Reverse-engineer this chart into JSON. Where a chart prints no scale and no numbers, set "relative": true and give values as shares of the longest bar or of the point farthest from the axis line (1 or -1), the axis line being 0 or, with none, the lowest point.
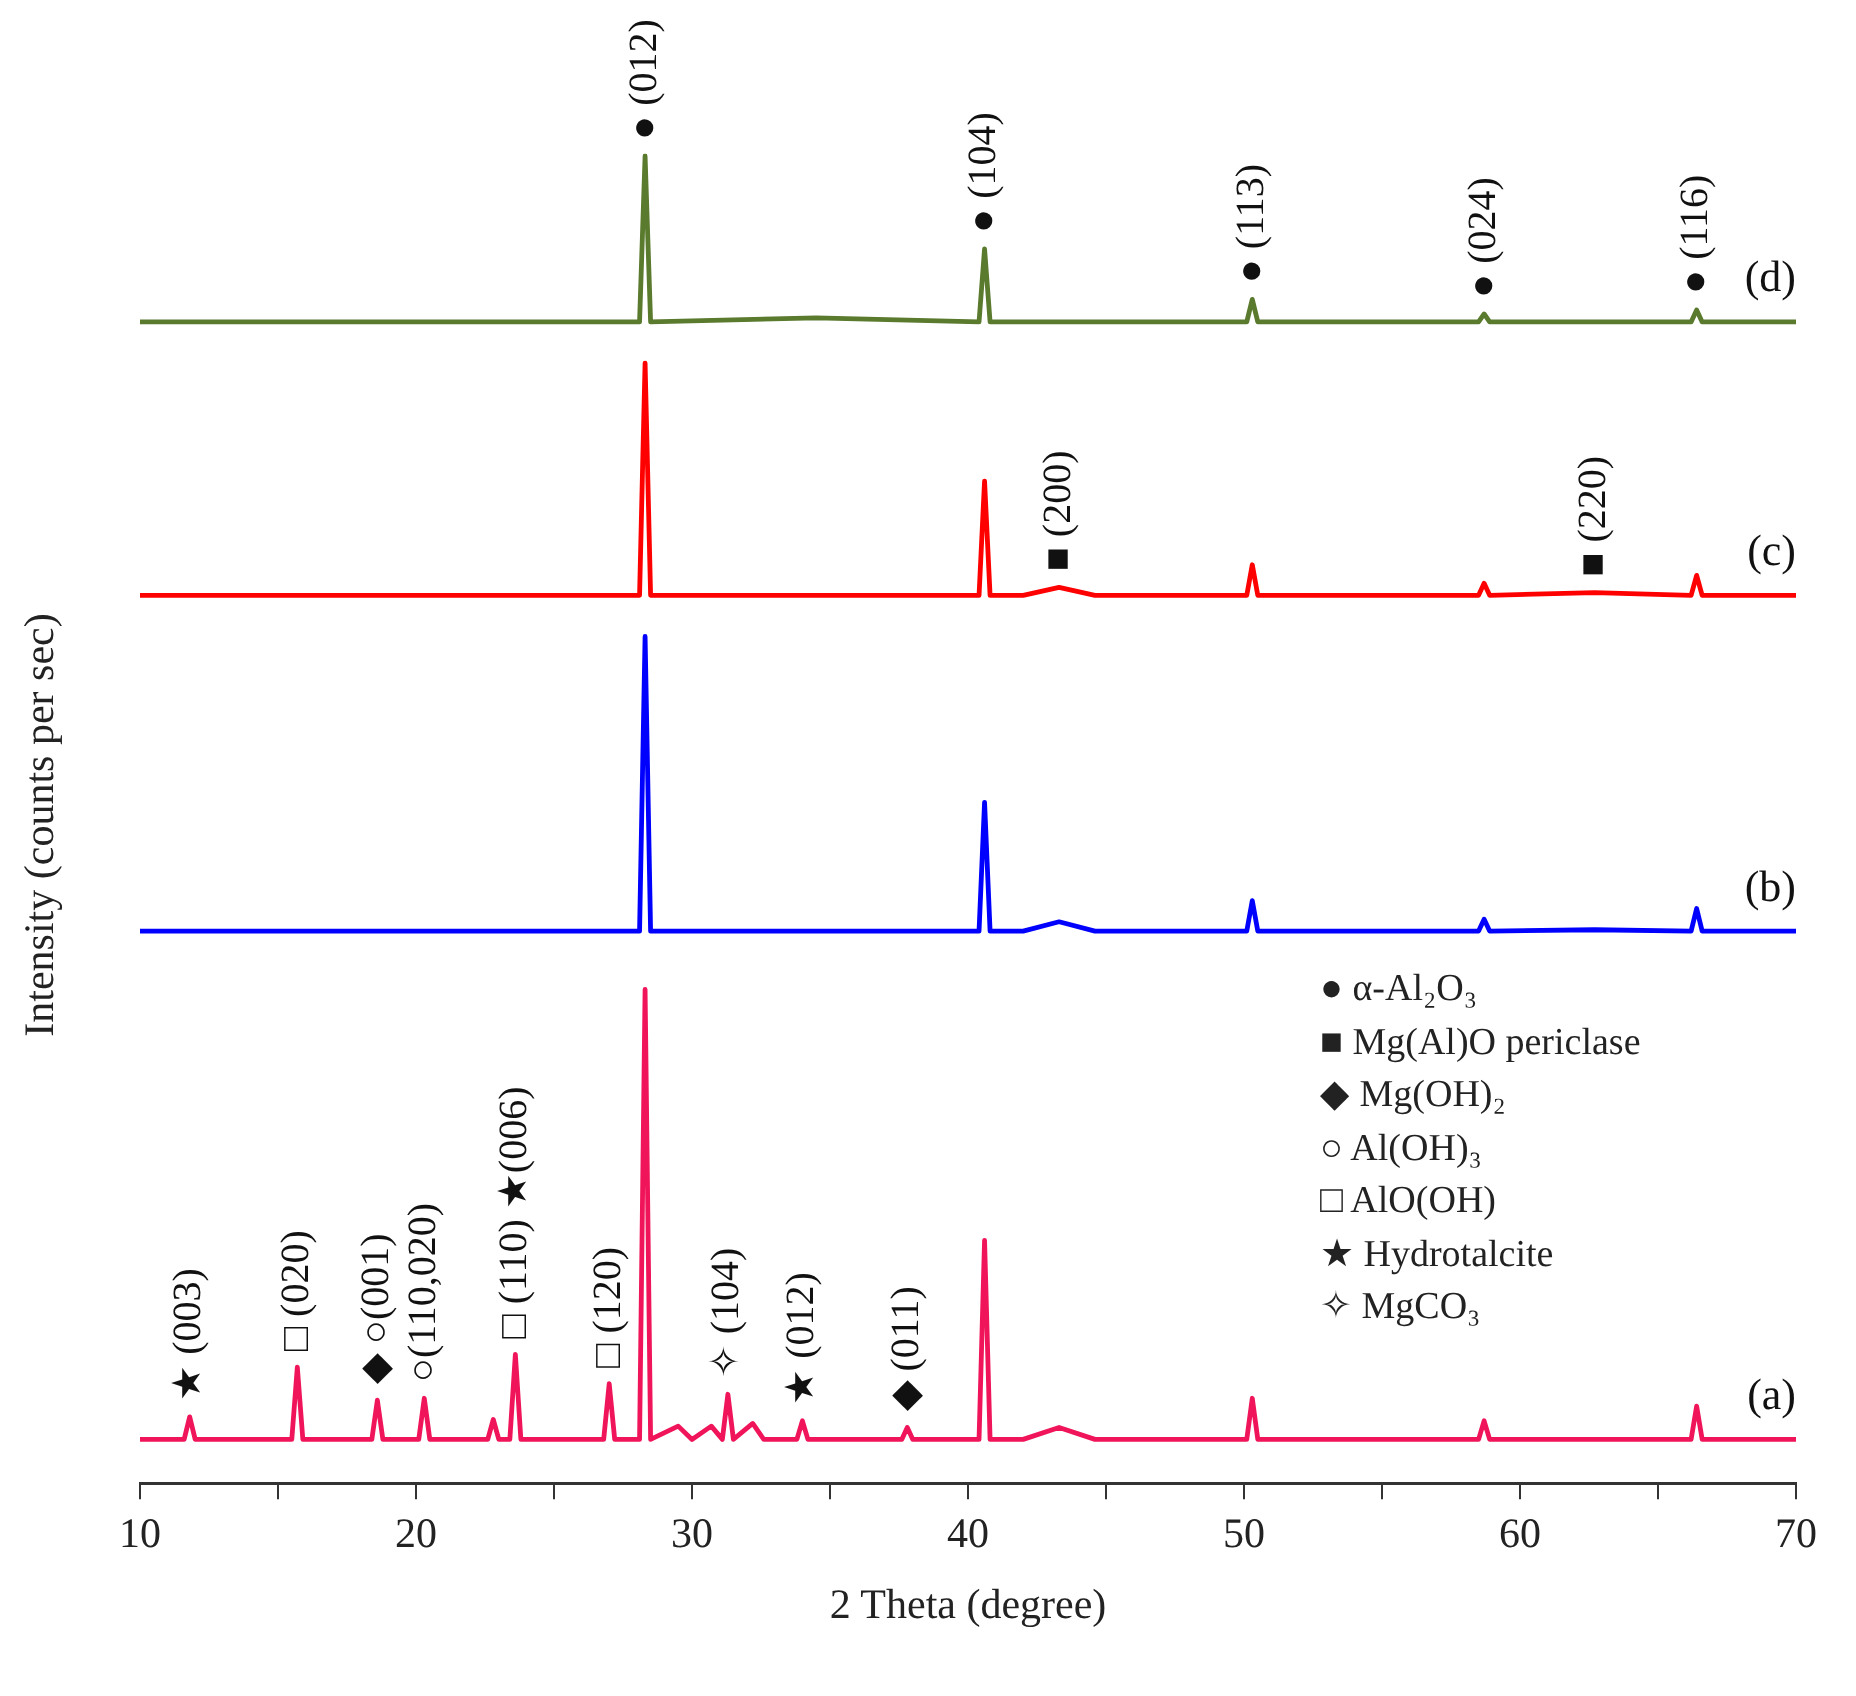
{
  "chart_data": {
    "type": "line",
    "relative": true,
    "xlabel": "2 Theta (degree)",
    "ylabel": "Intensity (counts per sec)",
    "xlim": [
      10,
      70
    ],
    "xticks": [
      10,
      {
        "value": 15,
        "label": null
      },
      20,
      {
        "value": 25,
        "label": null
      },
      30,
      {
        "value": 35,
        "label": null
      },
      40,
      {
        "value": 45,
        "label": null
      },
      50,
      {
        "value": 55,
        "label": null
      },
      60,
      {
        "value": 65,
        "label": null
      },
      70
    ],
    "tick_labels": "x",
    "marker": "none",
    "line_style": "solid",
    "series": [
      {
        "name": "(d)",
        "color": "#5a7a2e",
        "x": [
          10,
          28.1,
          28.3,
          28.5,
          34.5,
          40.4,
          40.6,
          40.8,
          50.1,
          50.3,
          50.5,
          58.5,
          58.7,
          58.9,
          66.2,
          66.4,
          66.6,
          70
        ],
        "values": [
          0.875,
          0.875,
          1.0,
          0.875,
          0.878,
          0.875,
          0.93,
          0.875,
          0.875,
          0.892,
          0.875,
          0.875,
          0.881,
          0.875,
          0.875,
          0.884,
          0.875,
          0.875
        ]
      },
      {
        "name": "(c)",
        "color": "#ff0000",
        "x": [
          10,
          28.1,
          28.3,
          28.5,
          40.4,
          40.6,
          40.8,
          42.0,
          43.3,
          44.6,
          50.1,
          50.3,
          50.5,
          58.5,
          58.7,
          58.9,
          62.7,
          66.2,
          66.4,
          66.6,
          70
        ],
        "values": [
          0.669,
          0.669,
          0.844,
          0.669,
          0.669,
          0.755,
          0.669,
          0.669,
          0.675,
          0.669,
          0.669,
          0.692,
          0.669,
          0.669,
          0.678,
          0.669,
          0.671,
          0.669,
          0.684,
          0.669,
          0.669
        ]
      },
      {
        "name": "(b)",
        "color": "#0000ff",
        "x": [
          10,
          28.1,
          28.3,
          28.5,
          40.4,
          40.6,
          40.8,
          42.0,
          43.3,
          44.6,
          50.1,
          50.3,
          50.5,
          58.5,
          58.7,
          58.9,
          62.7,
          66.2,
          66.4,
          66.6,
          70
        ],
        "values": [
          0.416,
          0.416,
          0.638,
          0.416,
          0.416,
          0.513,
          0.416,
          0.416,
          0.423,
          0.416,
          0.416,
          0.439,
          0.416,
          0.416,
          0.425,
          0.416,
          0.417,
          0.416,
          0.433,
          0.416,
          0.416
        ]
      },
      {
        "name": "(a)",
        "color": "#f0155a",
        "x": [
          10,
          11.6,
          11.8,
          12.0,
          15.5,
          15.7,
          15.9,
          18.4,
          18.6,
          18.8,
          20.1,
          20.3,
          20.5,
          22.6,
          22.8,
          23.0,
          23.4,
          23.6,
          23.8,
          26.8,
          27.0,
          27.2,
          28.1,
          28.3,
          28.5,
          29.5,
          30.0,
          30.7,
          31.1,
          31.3,
          31.5,
          32.2,
          32.6,
          33.8,
          34.0,
          34.2,
          37.6,
          37.8,
          38.0,
          40.4,
          40.6,
          40.8,
          42.0,
          43.3,
          44.6,
          50.1,
          50.3,
          50.5,
          58.5,
          58.7,
          58.9,
          66.2,
          66.4,
          66.6,
          70
        ],
        "values": [
          0.033,
          0.033,
          0.05,
          0.033,
          0.033,
          0.0875,
          0.033,
          0.033,
          0.0625,
          0.033,
          0.033,
          0.064,
          0.033,
          0.033,
          0.048,
          0.033,
          0.033,
          0.097,
          0.033,
          0.033,
          0.075,
          0.033,
          0.033,
          0.372,
          0.033,
          0.043,
          0.033,
          0.043,
          0.033,
          0.067,
          0.033,
          0.045,
          0.033,
          0.033,
          0.047,
          0.033,
          0.033,
          0.042,
          0.033,
          0.033,
          0.183,
          0.033,
          0.033,
          0.042,
          0.033,
          0.033,
          0.064,
          0.033,
          0.033,
          0.047,
          0.033,
          0.033,
          0.058,
          0.033,
          0.033
        ]
      }
    ],
    "annotations": [
      {
        "text": "● (012)",
        "x": 28.3,
        "y": 1.0
      },
      {
        "text": "● (104)",
        "x": 40.6,
        "y": 0.93
      },
      {
        "text": "● (113)",
        "x": 50.3,
        "y": 0.892
      },
      {
        "text": "● (024)",
        "x": 58.7,
        "y": 0.881
      },
      {
        "text": "● (116)",
        "x": 66.4,
        "y": 0.884
      },
      {
        "text": "■ (200)",
        "x": 43.3,
        "y": 0.675
      },
      {
        "text": "■ (220)",
        "x": 62.7,
        "y": 0.671
      },
      {
        "text": "★ (003)",
        "x": 11.8,
        "y": 0.05
      },
      {
        "text": "□ (020)",
        "x": 15.7,
        "y": 0.0875
      },
      {
        "text": "◆ ○(001)",
        "x": 18.6,
        "y": 0.0625
      },
      {
        "text": "○(110,020)",
        "x": 20.3,
        "y": 0.064
      },
      {
        "text": "□ (110) ★(006)",
        "x": 23.6,
        "y": 0.097
      },
      {
        "text": "□ (120)",
        "x": 27.0,
        "y": 0.075
      },
      {
        "text": "✧ (104)",
        "x": 31.3,
        "y": 0.067
      },
      {
        "text": "★ (012)",
        "x": 34.0,
        "y": 0.047
      },
      {
        "text": "◆ (011)",
        "x": 37.8,
        "y": 0.042
      },
      "● α-Al₂O₃",
      "■ Mg(Al)O periclase",
      "◆ Mg(OH)₂",
      "○ Al(OH)₃",
      "□ AlO(OH)",
      "★ Hydrotalcite",
      "✧ MgCO₃"
    ]
  }
}
